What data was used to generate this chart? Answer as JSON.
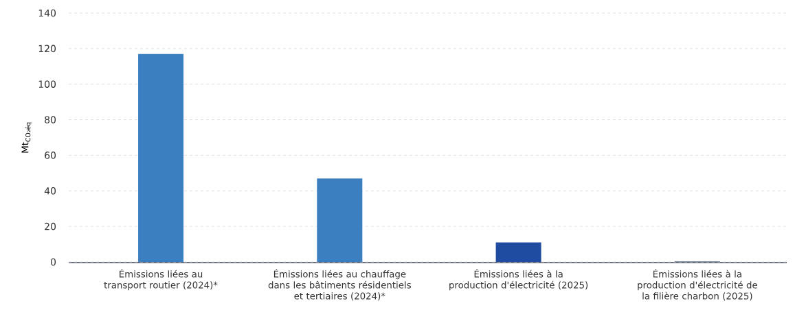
{
  "chart_data": {
    "type": "bar",
    "ylabel": "Mt$_{CO₂éq}$",
    "categories": [
      "Émissions liées au transport routier (2024)*",
      "Émissions liées au chauffage dans les bâtiments résidentiels et tertiaires (2024)*",
      "Émissions liées à la production d'électricité (2025)",
      "Émissions liées à la production d'électricité de la filière charbon (2025)"
    ],
    "values": [
      117,
      47,
      11,
      0.3
    ],
    "colors": [
      "#3b7fc0",
      "#3b7fc0",
      "#1f4ba1",
      "#45607f"
    ],
    "ylim": [
      0,
      140
    ],
    "yticks": [
      0,
      20,
      40,
      60,
      80,
      100,
      120,
      140
    ],
    "grid": "y"
  }
}
